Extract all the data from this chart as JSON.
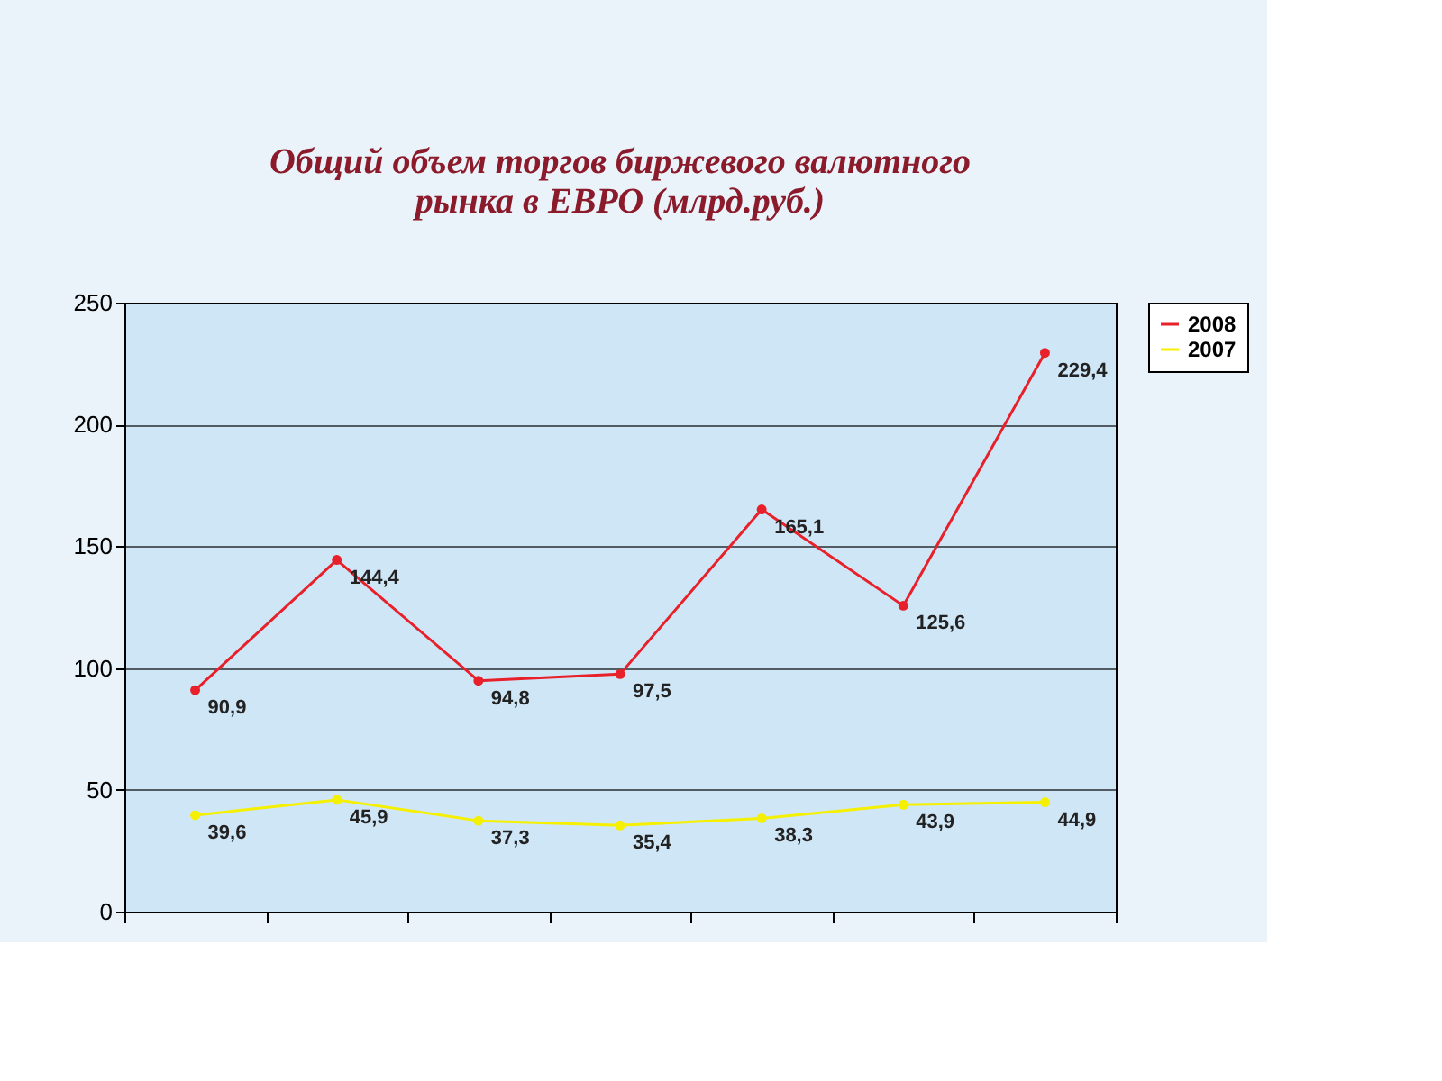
{
  "chart_data": {
    "type": "line",
    "title": "Общий объем торгов биржевого валютного рынка в ЕВРО (млрд.руб.)",
    "categories": [
      null,
      null,
      null,
      null,
      null,
      null,
      null
    ],
    "series": [
      {
        "name": "2008",
        "color": "#e8202a",
        "values": [
          90.9,
          144.4,
          94.8,
          97.5,
          165.1,
          125.6,
          229.4
        ],
        "value_labels": [
          "90,9",
          "144,4",
          "94,8",
          "97,5",
          "165,1",
          "125,6",
          "229,4"
        ]
      },
      {
        "name": "2007",
        "color": "#f5f000",
        "values": [
          39.6,
          45.9,
          37.3,
          35.4,
          38.3,
          43.9,
          44.9
        ],
        "value_labels": [
          "39,6",
          "45,9",
          "37,3",
          "35,4",
          "38,3",
          "43,9",
          "44,9"
        ]
      }
    ],
    "ylim": [
      0,
      250
    ],
    "yticks": [
      0,
      50,
      100,
      150,
      200,
      250
    ],
    "grid": "y",
    "legend": "right",
    "marker": "circle",
    "line_style": "solid",
    "tick_labels": "y"
  }
}
